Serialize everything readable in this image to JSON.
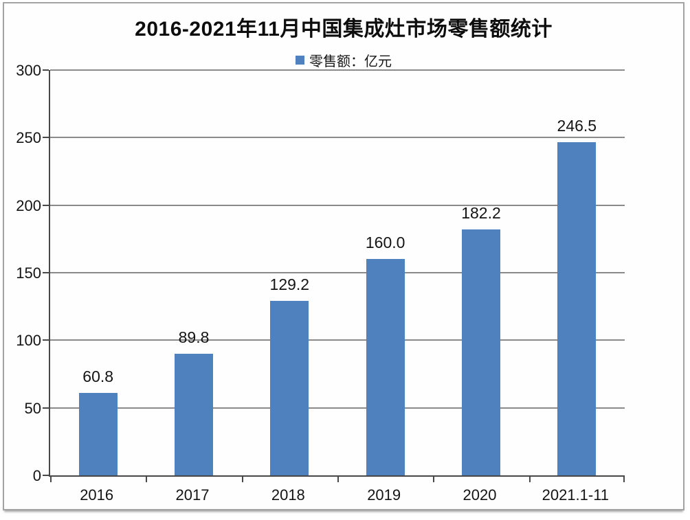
{
  "title": "2016-2021年11月中国集成灶市场零售额统计",
  "legend": {
    "label": "零售额：亿元",
    "swatch_icon": "legend-square-swatch",
    "swatch_color": "#4E81BD"
  },
  "colors": {
    "bar": "#4E81BD",
    "gridline": "#8a8a8a",
    "axis": "#474747",
    "frame_border": "#a3a3a3",
    "text": "#141414",
    "background": "#fefefe"
  },
  "chart_data": {
    "type": "bar",
    "title": "2016-2021年11月中国集成灶市场零售额统计",
    "legend_entries": [
      "零售额：亿元"
    ],
    "legend_position": "top",
    "categories": [
      "2016",
      "2017",
      "2018",
      "2019",
      "2020",
      "2021.1-11"
    ],
    "values": [
      60.8,
      89.8,
      129.2,
      160.0,
      182.2,
      246.5
    ],
    "value_labels": [
      "60.8",
      "89.8",
      "129.2",
      "160.0",
      "182.2",
      "246.5"
    ],
    "xlabel": "",
    "ylabel": "",
    "ylim": [
      0,
      300
    ],
    "yticks": [
      0,
      50,
      100,
      150,
      200,
      250,
      300
    ],
    "ytick_labels": [
      "0",
      "50",
      "100",
      "150",
      "200",
      "250",
      "300"
    ],
    "grid": true,
    "bar_color": "#4E81BD"
  }
}
